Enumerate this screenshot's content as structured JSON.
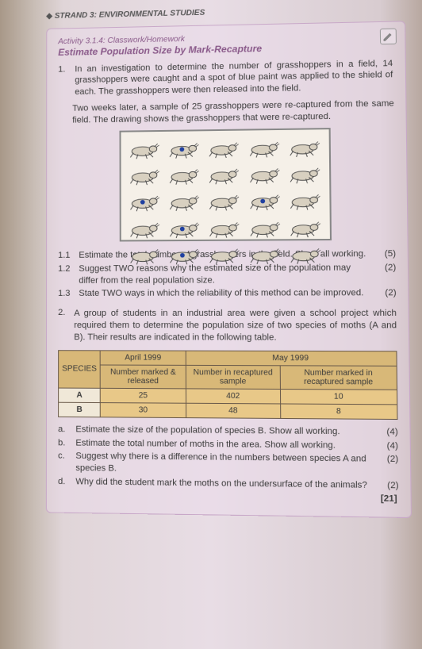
{
  "header": {
    "strand": "STRAND 3: ENVIRONMENTAL STUDIES"
  },
  "activity": {
    "line1": "Activity 3.1.4: Classwork/Homework",
    "line2": "Estimate Population Size by Mark-Recapture",
    "icon": "pencil-icon"
  },
  "q1": {
    "number": "1.",
    "para1": "In an investigation to determine the number of grasshoppers in a field, 14 grasshoppers were caught and a spot of blue paint was applied to the shield of each. The grasshoppers were then released into the field.",
    "para2": "Two weeks later, a sample of 25 grasshoppers were re-captured from the same field. The drawing shows the grasshoppers that were re-captured.",
    "grasshoppers": {
      "total": 25,
      "marked_positions": [
        1,
        10,
        13,
        16,
        21
      ],
      "body_color": "#d8d0c0",
      "outline_color": "#4a4a4a",
      "mark_color": "#2040a0"
    },
    "subs": [
      {
        "n": "1.1",
        "t": "Estimate the total number of grasshoppers in the field. Show all working.",
        "m": "(5)"
      },
      {
        "n": "1.2",
        "t": "Suggest TWO reasons why the estimated size of the population may differ from the real population size.",
        "m": "(2)"
      },
      {
        "n": "1.3",
        "t": "State TWO ways in which the reliability of this method can be improved.",
        "m": "(2)"
      }
    ]
  },
  "q2": {
    "number": "2.",
    "intro": "A group of students in an industrial area were given a school project which required them to determine the population size of two species of moths (A and B). Their results are indicated in the following table.",
    "table": {
      "col_species": "SPECIES",
      "col_april": "April 1999",
      "col_may": "May 1999",
      "sub_marked_released": "Number marked & released",
      "sub_num_recap": "Number in recaptured sample",
      "sub_num_marked_recap": "Number marked in recaptured sample",
      "rows": [
        {
          "sp": "A",
          "mr": "25",
          "nr": "402",
          "nmr": "10"
        },
        {
          "sp": "B",
          "mr": "30",
          "nr": "48",
          "nmr": "8"
        }
      ],
      "header_bg": "#d8b878",
      "cell_bg": "#e8c888",
      "species_bg": "#f0e8d8",
      "border_color": "#6a5a4a"
    },
    "subs": [
      {
        "n": "a.",
        "t": "Estimate the size of the population of species B. Show all working.",
        "m": "(4)"
      },
      {
        "n": "b.",
        "t": "Estimate the total number of moths in the area. Show all working.",
        "m": "(4)"
      },
      {
        "n": "c.",
        "t": "Suggest why there is a difference in the numbers between species A and species B.",
        "m": "(2)"
      },
      {
        "n": "d.",
        "t": "Why did the student mark the moths on the undersurface of the animals?",
        "m": "(2)"
      }
    ],
    "total": "[21]"
  }
}
